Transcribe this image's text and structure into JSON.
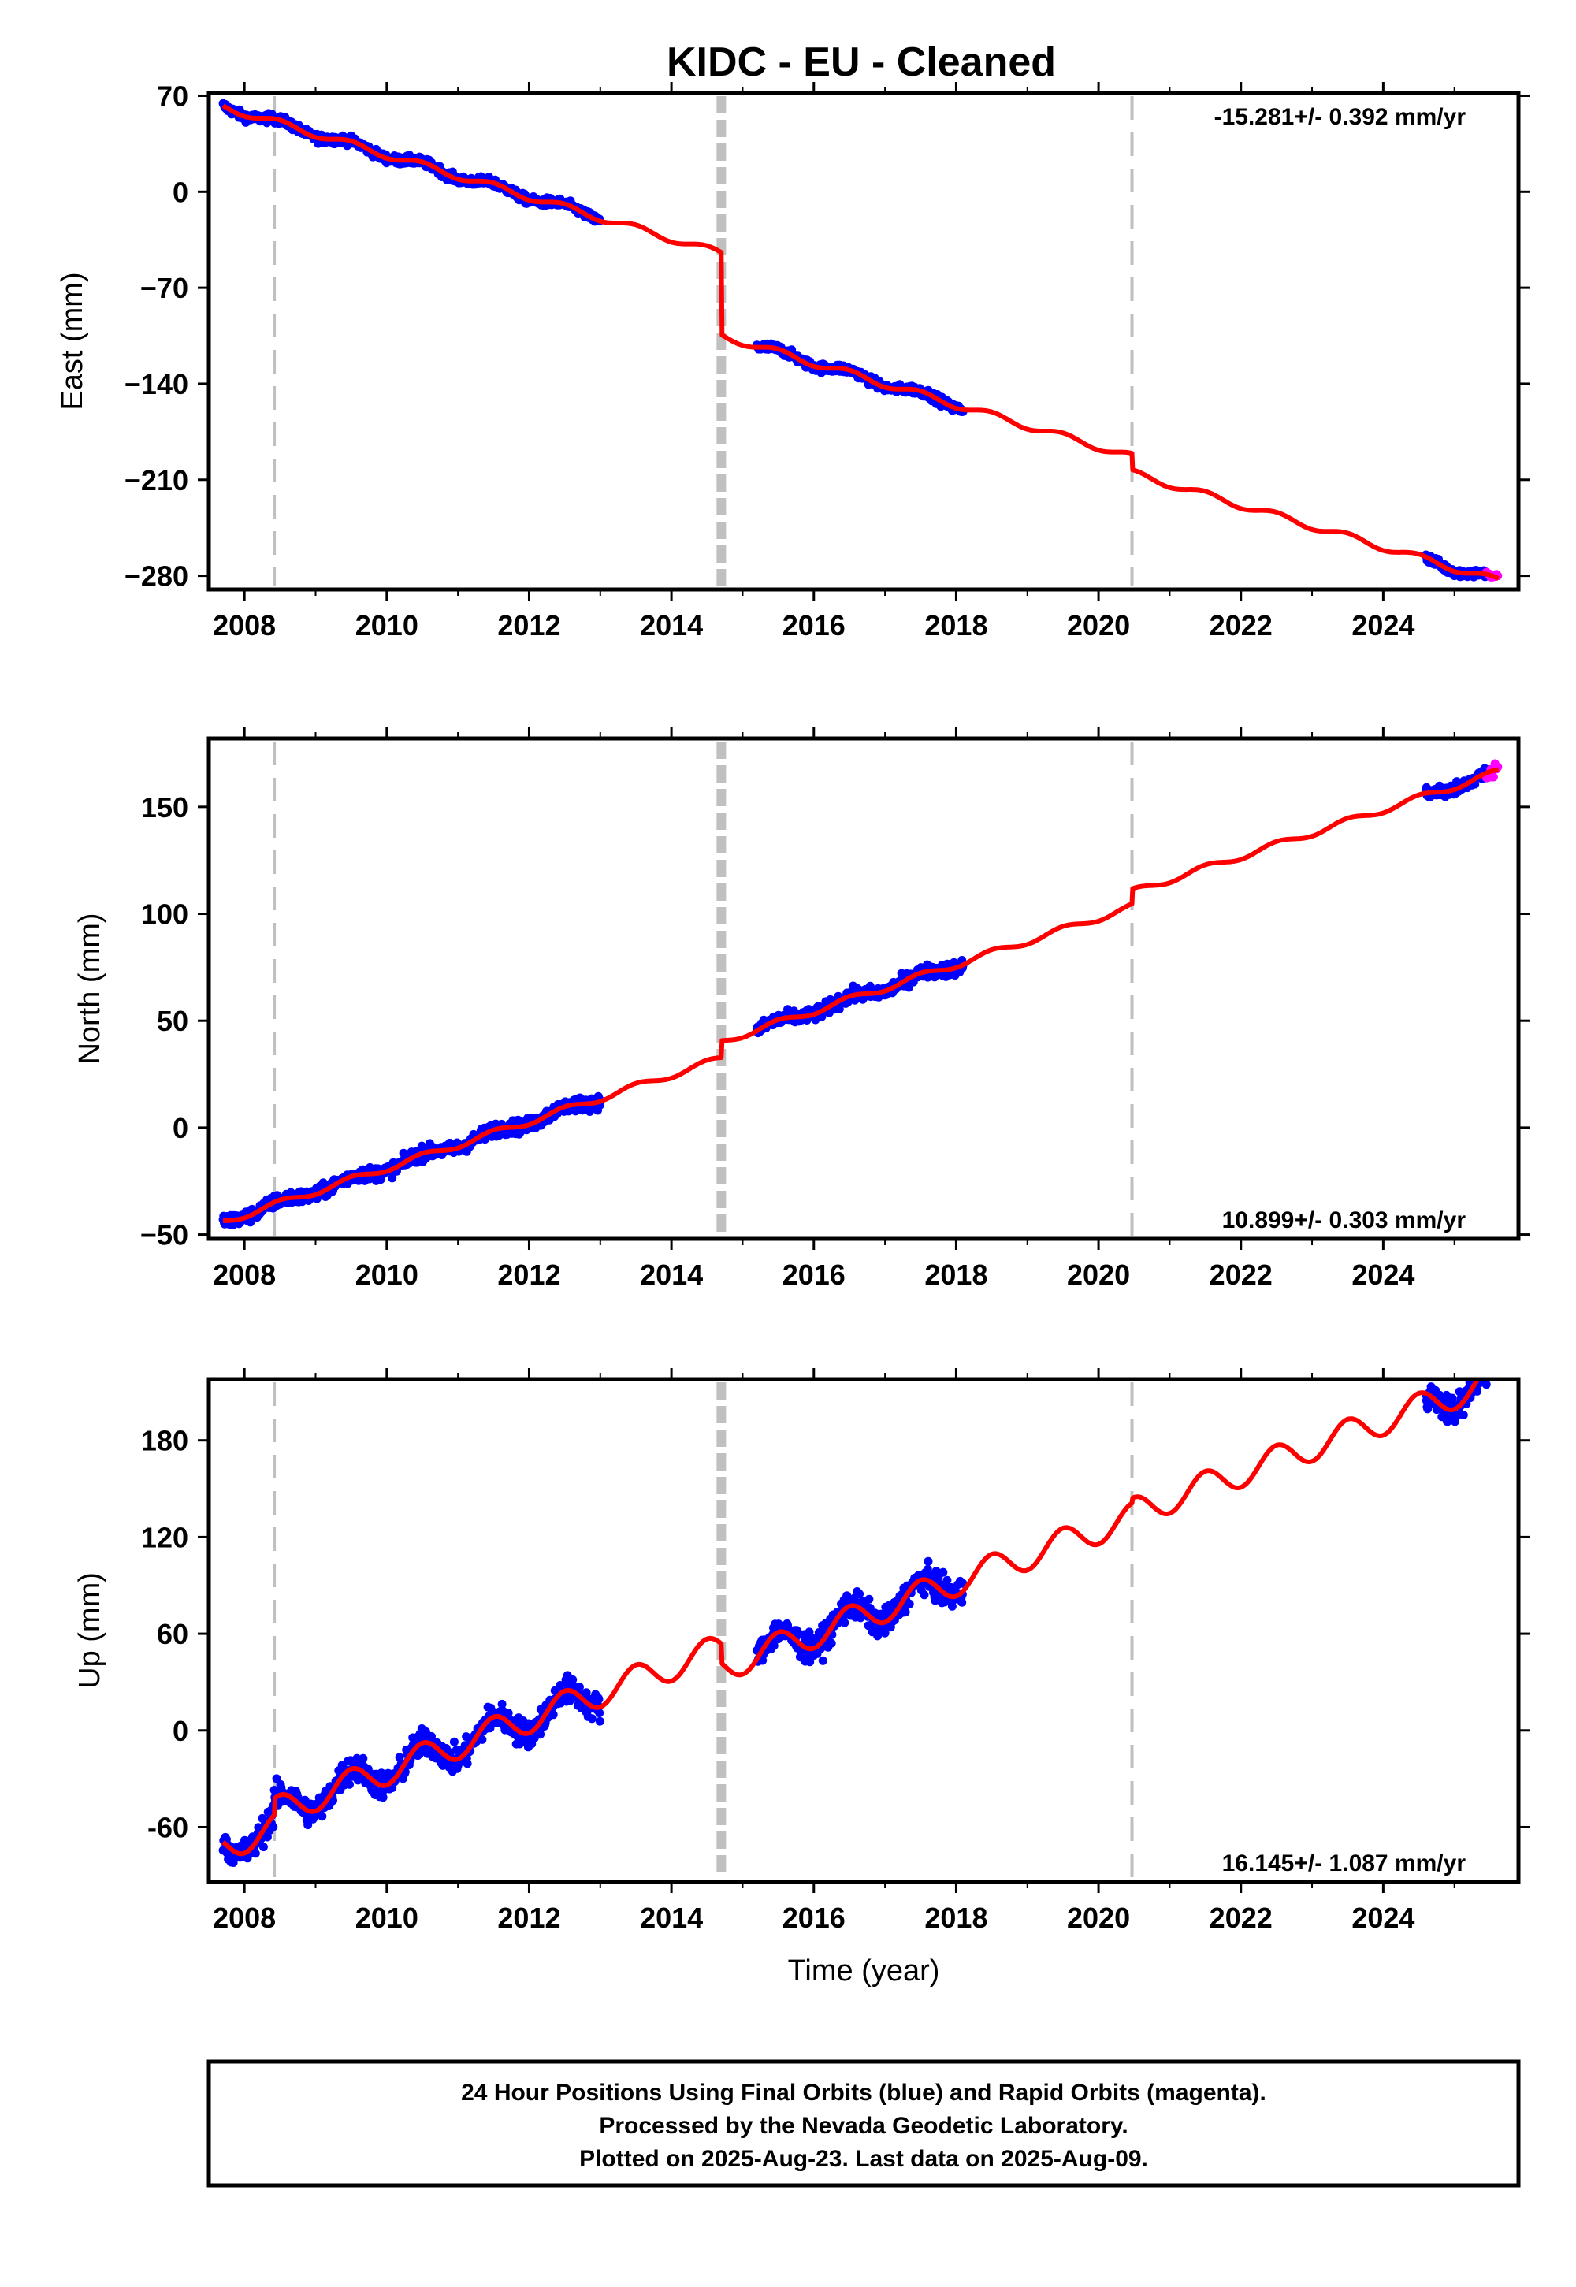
{
  "title": "KIDC  - EU - Cleaned",
  "colors": {
    "final_orbits": "#0000ff",
    "rapid_orbits": "#ff00ff",
    "model": "#ff0000",
    "event_lines": "#c0c0c0",
    "frame": "#000000"
  },
  "chart_data": [
    {
      "type": "scatter",
      "name": "east",
      "ylabel": "East (mm)",
      "xlim": [
        2007.5,
        2025.9
      ],
      "ylim": [
        -290,
        72
      ],
      "yticks": [
        "70",
        "0",
        "−70",
        "−140",
        "−210",
        "−280"
      ],
      "ytick_values": [
        70,
        0,
        -70,
        -140,
        -210,
        -280
      ],
      "xticks": [
        "2008",
        "2010",
        "2012",
        "2014",
        "2016",
        "2018",
        "2020",
        "2022",
        "2024"
      ],
      "rate": "-15.281+/- 0.392 mm/yr",
      "rate_position": "top-right",
      "velocity": -15.281,
      "seasonal_amplitude": 2.5,
      "model_offsets": [
        {
          "t": 2008.42,
          "dy": 0
        },
        {
          "t": 2014.7,
          "dy": -60
        },
        {
          "t": 2020.47,
          "dy": -12
        }
      ],
      "model_anchor": {
        "t": 2007.7,
        "y": 62
      },
      "final_data_segments": [
        [
          2007.7,
          2013.0
        ],
        [
          2015.2,
          2018.1
        ],
        [
          2024.6,
          2025.45
        ]
      ],
      "rapid_data_segments": [
        [
          2025.45,
          2025.62
        ]
      ],
      "scatter_noise": 3
    },
    {
      "type": "scatter",
      "name": "north",
      "ylabel": "North (mm)",
      "xlim": [
        2007.5,
        2025.9
      ],
      "ylim": [
        -52,
        182
      ],
      "yticks": [
        "150",
        "100",
        "50",
        "0",
        "−50"
      ],
      "ytick_values": [
        150,
        100,
        50,
        0,
        -50
      ],
      "xticks": [
        "2008",
        "2010",
        "2012",
        "2014",
        "2016",
        "2018",
        "2020",
        "2022",
        "2024"
      ],
      "rate": "10.899+/- 0.303 mm/yr",
      "rate_position": "bottom-right",
      "velocity": 10.899,
      "seasonal_amplitude": 1.5,
      "model_offsets": [
        {
          "t": 2008.42,
          "dy": 0
        },
        {
          "t": 2014.7,
          "dy": 8
        },
        {
          "t": 2020.47,
          "dy": 7
        }
      ],
      "model_anchor": {
        "t": 2007.7,
        "y": -44
      },
      "final_data_segments": [
        [
          2007.7,
          2013.0
        ],
        [
          2015.2,
          2018.1
        ],
        [
          2024.6,
          2025.45
        ]
      ],
      "rapid_data_segments": [
        [
          2025.45,
          2025.62
        ]
      ],
      "scatter_noise": 3
    },
    {
      "type": "scatter",
      "name": "up",
      "ylabel": "Up (mm)",
      "xlabel": "Time (year)",
      "xlim": [
        2007.5,
        2025.9
      ],
      "ylim": [
        -94,
        218
      ],
      "yticks": [
        "180",
        "120",
        "60",
        "0",
        "-60"
      ],
      "ytick_values": [
        180,
        120,
        60,
        0,
        -60
      ],
      "xticks": [
        "2008",
        "2010",
        "2012",
        "2014",
        "2016",
        "2018",
        "2020",
        "2022",
        "2024"
      ],
      "rate": "16.145+/- 1.087 mm/yr",
      "rate_position": "bottom-right",
      "velocity": 16.145,
      "seasonal_amplitude": 9,
      "model_offsets": [
        {
          "t": 2008.42,
          "dy": 10
        },
        {
          "t": 2014.7,
          "dy": -12
        },
        {
          "t": 2020.47,
          "dy": 3
        }
      ],
      "model_anchor": {
        "t": 2007.7,
        "y": -72
      },
      "final_data_segments": [
        [
          2007.7,
          2013.0
        ],
        [
          2015.2,
          2018.1
        ],
        [
          2024.6,
          2025.45
        ]
      ],
      "rapid_data_segments": [
        [
          2025.45,
          2025.62
        ]
      ],
      "scatter_noise": 8
    }
  ],
  "event_lines": [
    {
      "t": 2008.42,
      "style": "thin-dashed"
    },
    {
      "t": 2014.7,
      "style": "thick-dashed"
    },
    {
      "t": 2020.47,
      "style": "thin-dashed"
    }
  ],
  "footer": {
    "line1": "24 Hour Positions Using Final Orbits (blue) and Rapid Orbits (magenta).",
    "line2": "Processed by the Nevada Geodetic Laboratory.",
    "line3": "Plotted on 2025-Aug-23. Last data on 2025-Aug-09."
  }
}
